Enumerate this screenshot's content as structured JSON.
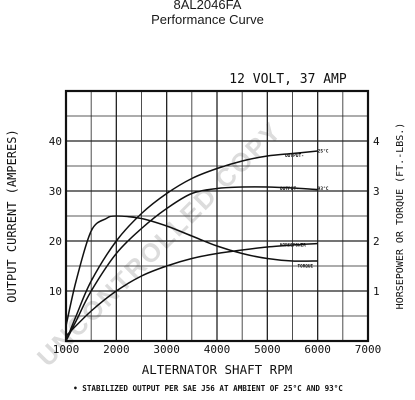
{
  "header": {
    "title": "8AL2046FA",
    "subtitle": "Performance Curve"
  },
  "chart_data": {
    "type": "line",
    "title": "12 VOLT, 37 AMP",
    "xlabel": "ALTERNATOR SHAFT RPM",
    "ylabel": "OUTPUT CURRENT (AMPERES)",
    "y2label": "HORSEPOWER OR TORQUE (FT.-LBS.)",
    "xlim": [
      1000,
      7000
    ],
    "ylim": [
      0,
      50
    ],
    "y2lim": [
      0,
      5
    ],
    "x_ticks": [
      "1000",
      "2000",
      "3000",
      "4000",
      "5000",
      "6000",
      "7000"
    ],
    "y_ticks": [
      "10",
      "20",
      "30",
      "40"
    ],
    "y2_ticks": [
      "1",
      "2",
      "3",
      "4"
    ],
    "grid": true,
    "series": [
      {
        "name": "OUTPUT-25°C",
        "axis": "left",
        "x": [
          1000,
          1200,
          1500,
          2000,
          2500,
          3000,
          3500,
          4000,
          4500,
          5000,
          5500,
          6000
        ],
        "y": [
          0,
          5,
          12,
          20,
          25.5,
          29.5,
          32.5,
          34.5,
          36,
          37,
          37.5,
          38
        ]
      },
      {
        "name": "OUTPUT-93°C",
        "axis": "left",
        "x": [
          1000,
          1200,
          1500,
          2000,
          2500,
          3000,
          3500,
          4000,
          4500,
          5000,
          5500,
          6000
        ],
        "y": [
          0,
          4,
          10,
          17.5,
          22.5,
          26.5,
          29.5,
          30.5,
          30.8,
          30.8,
          30.6,
          30.3
        ]
      },
      {
        "name": "HORSEPOWER",
        "axis": "right",
        "x": [
          1000,
          1500,
          2000,
          2500,
          3000,
          3500,
          4000,
          4500,
          5000,
          5500,
          6000
        ],
        "y": [
          0.1,
          0.6,
          1.0,
          1.3,
          1.5,
          1.65,
          1.75,
          1.82,
          1.88,
          1.92,
          1.95
        ]
      },
      {
        "name": "TORQUE",
        "axis": "right",
        "x": [
          1000,
          1200,
          1500,
          1800,
          2000,
          2500,
          3000,
          3500,
          4000,
          4500,
          5000,
          5500,
          6000
        ],
        "y": [
          0.3,
          1.2,
          2.2,
          2.45,
          2.5,
          2.45,
          2.3,
          2.1,
          1.9,
          1.75,
          1.65,
          1.6,
          1.6
        ]
      }
    ],
    "annotations": [
      {
        "text": "OUTPUT-",
        "near_series": "OUTPUT-25°C"
      },
      {
        "text": "25°C",
        "near_series": "OUTPUT-25°C"
      },
      {
        "text": "OUTPUT-",
        "near_series": "OUTPUT-93°C"
      },
      {
        "text": "93°C",
        "near_series": "OUTPUT-93°C"
      },
      {
        "text": "HORSEPOWER",
        "near_series": "HORSEPOWER"
      },
      {
        "text": "TORQUE",
        "near_series": "TORQUE"
      }
    ],
    "footnote": "• STABILIZED OUTPUT PER SAE J56 AT AMBIENT OF 25°C AND 93°C",
    "watermark": "UNCONTROLLED COPY"
  }
}
